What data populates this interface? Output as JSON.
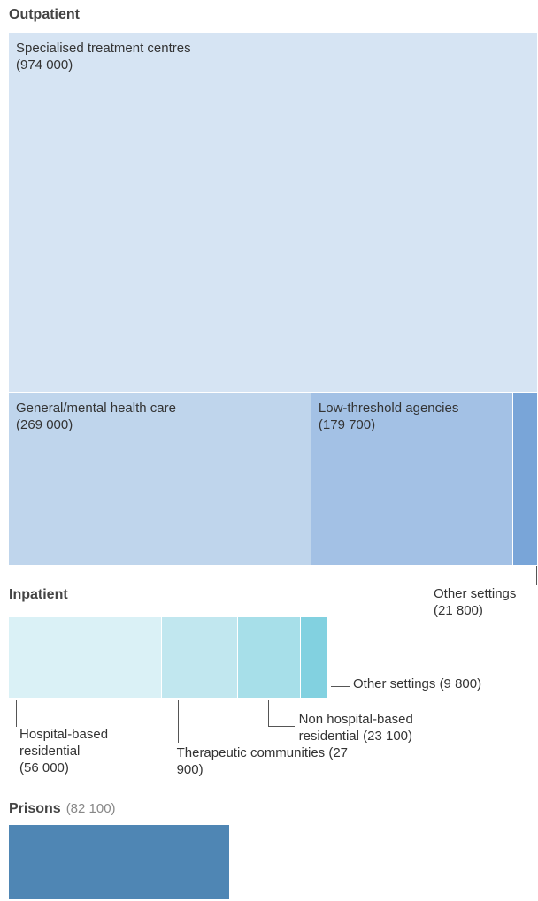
{
  "chart_data": {
    "type": "treemap",
    "groups": [
      {
        "name": "Outpatient",
        "items": [
          {
            "name": "Specialised treatment centres",
            "value": 974000,
            "value_label": "(974 000)",
            "color": "#d6e4f3"
          },
          {
            "name": "General/mental health care",
            "value": 269000,
            "value_label": "(269 000)",
            "color": "#bfd5ec"
          },
          {
            "name": "Low-threshold agencies",
            "value": 179700,
            "value_label": "(179 700)",
            "color": "#a3c1e5"
          },
          {
            "name": "Other settings",
            "value": 21800,
            "value_label": "(21 800)",
            "color": "#79a5d8"
          }
        ]
      },
      {
        "name": "Inpatient",
        "items": [
          {
            "name": "Hospital-based residential",
            "value": 56000,
            "value_label": "(56 000)",
            "color": "#daf1f6"
          },
          {
            "name": "Therapeutic communities",
            "value": 27900,
            "value_label": "(27 900)",
            "color": "#c1e7ef"
          },
          {
            "name": "Non hospital-based residential",
            "value": 23100,
            "value_label": "(23 100)",
            "color": "#a7dfe9"
          },
          {
            "name": "Other settings",
            "value": 9800,
            "value_label": "(9 800)",
            "color": "#82d1e0"
          }
        ]
      },
      {
        "name": "Prisons",
        "value": 82100,
        "value_label": "(82 100)",
        "color": "#4f86b4",
        "items": []
      }
    ]
  }
}
